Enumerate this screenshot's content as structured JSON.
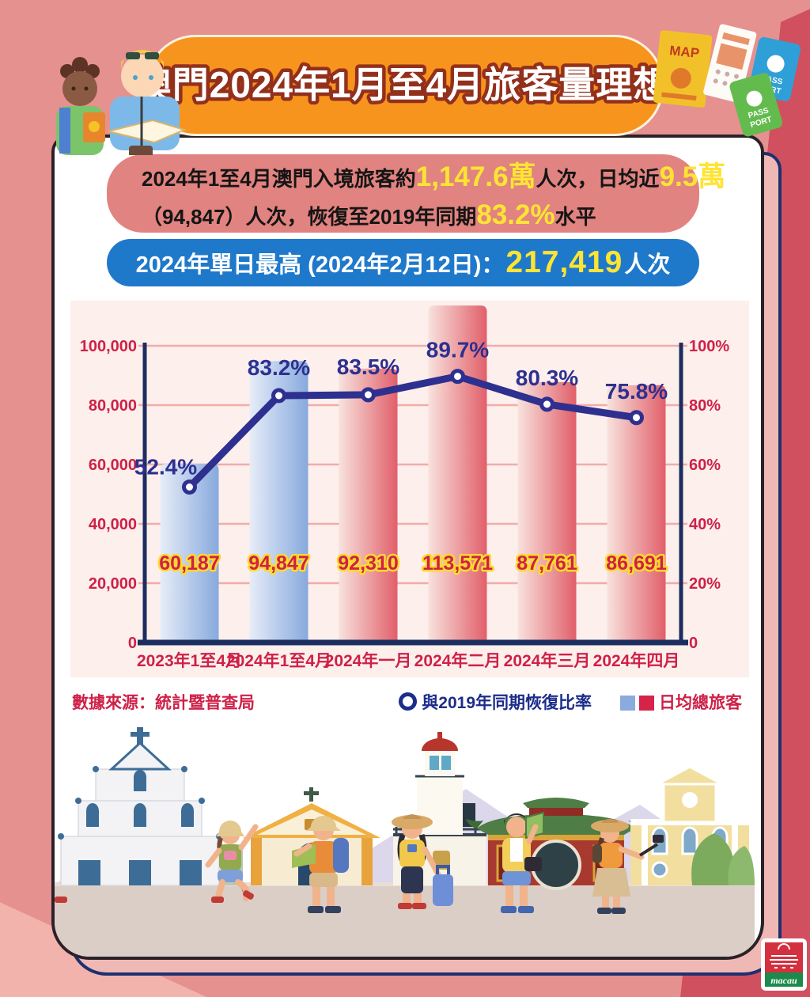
{
  "page": {
    "title": "澳門2024年1月至4月旅客量理想"
  },
  "colors": {
    "background_salmon": "#e59190",
    "background_rose": "#d05060",
    "banner_orange": "#f7941e",
    "title_outline_red": "#93301c",
    "summary_box_pink": "#e18380",
    "highlight_box_blue": "#1f79cb",
    "highlight_yellow": "#ffe433",
    "axis_navy": "#1c2d5f",
    "line_navy": "#2e3090",
    "crimson_text": "#ce2148",
    "bar_blue": "#8baade",
    "bar_red": "#e0606b",
    "panel_pink": "#fdefec"
  },
  "summary": {
    "line1": [
      "2024年1至4月澳門入境旅客約",
      "1,147.6萬",
      "人次，日均近",
      "9.5萬"
    ],
    "line2": [
      "（94,847）人次，恢復至2019年同期",
      "83.2%",
      "水平"
    ]
  },
  "highlight": {
    "prefix": "2024年單日最高 (2024年2月12日)：",
    "value": "217,419",
    "suffix": "人次"
  },
  "footer": {
    "source": "數據來源：統計暨普查局",
    "legend_line": "與2019年同期恢復比率",
    "legend_bars": "日均總旅客"
  },
  "decor": {
    "map": "MAP",
    "pass1": "PASS",
    "port1": "PORT",
    "pass2": "PASS",
    "port2": "PORT",
    "logo": "macau"
  },
  "chart_data": {
    "type": "bar+line",
    "categories": [
      "2023年1至4月",
      "2024年1至4月",
      "2024年一月",
      "2024年二月",
      "2024年三月",
      "2024年四月"
    ],
    "series": [
      {
        "name": "日均總旅客",
        "type": "bar",
        "axis": "left",
        "values": [
          60187,
          94847,
          92310,
          113571,
          87761,
          86691
        ],
        "labels": [
          "60,187",
          "94,847",
          "92,310",
          "113,571",
          "87,761",
          "86,691"
        ],
        "bar_colors": [
          "blue",
          "blue",
          "red",
          "red",
          "red",
          "red"
        ]
      },
      {
        "name": "與2019年同期恢復比率",
        "type": "line",
        "axis": "right",
        "values": [
          52.4,
          83.2,
          83.5,
          89.7,
          80.3,
          75.8
        ],
        "labels": [
          "52.4%",
          "83.2%",
          "83.5%",
          "89.7%",
          "80.3%",
          "75.8%"
        ]
      }
    ],
    "left_axis": {
      "min": 0,
      "max": 100000,
      "tick_labels": [
        "100,000",
        "80,000",
        "60,000",
        "40,000",
        "20,000",
        "0"
      ]
    },
    "right_axis": {
      "min": 0,
      "max": 100,
      "tick_labels": [
        "100%",
        "80%",
        "60%",
        "40%",
        "20%",
        "0"
      ]
    },
    "grid": true,
    "legend_position": "bottom-right"
  }
}
